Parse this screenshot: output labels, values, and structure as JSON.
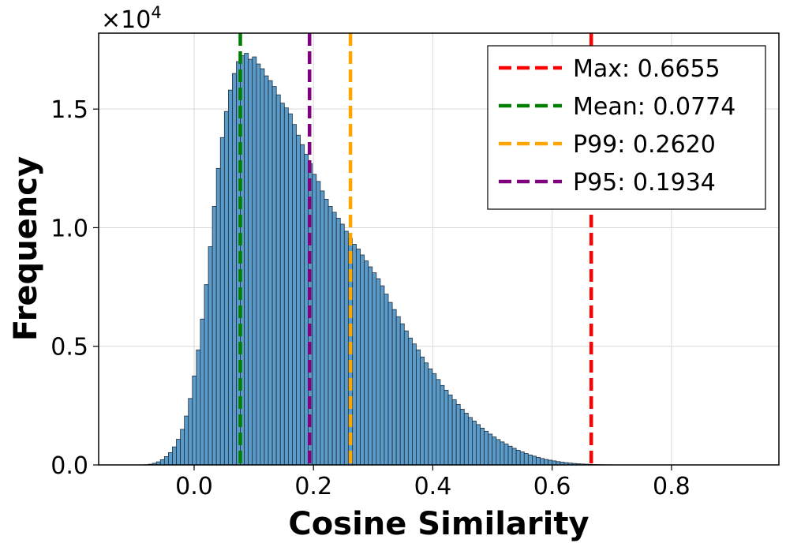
{
  "chart_data": {
    "type": "bar",
    "title": "",
    "xlabel": "Cosine Similarity",
    "ylabel": "Frequency",
    "y_scale_label": "×10",
    "y_scale_exponent": "4",
    "xlim": [
      -0.16,
      0.98
    ],
    "ylim": [
      0,
      18200
    ],
    "x_ticks": [
      0.0,
      0.2,
      0.4,
      0.6,
      0.8
    ],
    "x_tick_labels": [
      "0.0",
      "0.2",
      "0.4",
      "0.6",
      "0.8"
    ],
    "y_ticks": [
      0,
      5000,
      10000,
      15000
    ],
    "y_tick_labels": [
      "0.0",
      "0.5",
      "1.0",
      "1.5"
    ],
    "grid": true,
    "bin_width": 0.0067,
    "histogram": {
      "bin_start": -0.09,
      "values": [
        3,
        10,
        30,
        70,
        130,
        220,
        350,
        520,
        760,
        1080,
        1500,
        2060,
        2800,
        3750,
        4850,
        6150,
        7600,
        9200,
        10900,
        12500,
        13800,
        14900,
        15800,
        16500,
        17000,
        17250,
        17350,
        17100,
        17200,
        16900,
        16700,
        16400,
        16200,
        15950,
        15600,
        15250,
        15050,
        14800,
        14350,
        13900,
        13500,
        13100,
        12700,
        12250,
        11950,
        11550,
        11200,
        10900,
        10650,
        10400,
        10150,
        9850,
        9550,
        9300,
        9100,
        8850,
        8600,
        8350,
        8100,
        7850,
        7550,
        7200,
        6850,
        6550,
        6250,
        5950,
        5650,
        5350,
        5100,
        4850,
        4550,
        4300,
        4050,
        3850,
        3600,
        3350,
        3150,
        2950,
        2750,
        2550,
        2350,
        2180,
        2000,
        1850,
        1700,
        1550,
        1420,
        1300,
        1180,
        1070,
        970,
        880,
        790,
        700,
        620,
        550,
        480,
        420,
        370,
        320,
        270,
        230,
        200,
        170,
        140,
        115,
        95,
        78,
        62,
        50,
        40,
        32,
        25,
        19,
        14,
        10,
        7,
        5,
        3,
        2,
        1,
        1
      ]
    },
    "vlines": [
      {
        "label": "Max: 0.6655",
        "x": 0.6655,
        "color": "#ff0000"
      },
      {
        "label": "Mean: 0.0774",
        "x": 0.0774,
        "color": "#008000"
      },
      {
        "label": "P99: 0.2620",
        "x": 0.262,
        "color": "#ffa500"
      },
      {
        "label": "P95: 0.1934",
        "x": 0.1934,
        "color": "#800080"
      }
    ],
    "legend_position": "upper right"
  }
}
